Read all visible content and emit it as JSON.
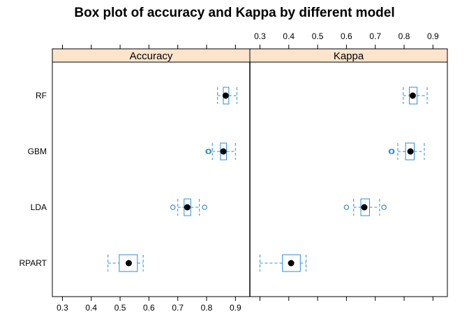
{
  "chart_data": {
    "type": "boxplot",
    "title": "Box plot of accuracy and Kappa by different model",
    "categories": [
      "RF",
      "GBM",
      "LDA",
      "RPART"
    ],
    "colors": {
      "box": "#2b8cd6",
      "median": "#000000",
      "strip": "#ffe4cc",
      "frame": "#000000"
    },
    "panels": [
      {
        "name": "Accuracy",
        "xlim": [
          0.265,
          0.95
        ],
        "ticks": [
          0.3,
          0.4,
          0.5,
          0.6,
          0.7,
          0.8,
          0.9
        ],
        "tick_labels": [
          "0.3",
          "0.4",
          "0.5",
          "0.6",
          "0.7",
          "0.8",
          "0.9"
        ],
        "tick_labels_position": "bottom",
        "boxes": [
          {
            "category": "RF",
            "min": 0.838,
            "q1": 0.858,
            "median": 0.866,
            "q3": 0.877,
            "max": 0.905,
            "outliers": []
          },
          {
            "category": "GBM",
            "min": 0.82,
            "q1": 0.848,
            "median": 0.858,
            "q3": 0.869,
            "max": 0.9,
            "outliers": [
              0.805,
              0.808
            ]
          },
          {
            "category": "LDA",
            "min": 0.7,
            "q1": 0.722,
            "median": 0.733,
            "q3": 0.745,
            "max": 0.775,
            "outliers": [
              0.683,
              0.793
            ]
          },
          {
            "category": "RPART",
            "min": 0.458,
            "q1": 0.497,
            "median": 0.53,
            "q3": 0.56,
            "max": 0.58,
            "outliers": []
          }
        ]
      },
      {
        "name": "Kappa",
        "xlim": [
          0.265,
          0.95
        ],
        "ticks": [
          0.3,
          0.4,
          0.5,
          0.6,
          0.7,
          0.8,
          0.9
        ],
        "tick_labels": [
          "0.3",
          "0.4",
          "0.5",
          "0.6",
          "0.7",
          "0.8",
          "0.9"
        ],
        "tick_labels_position": "top",
        "boxes": [
          {
            "category": "RF",
            "min": 0.797,
            "q1": 0.818,
            "median": 0.83,
            "q3": 0.845,
            "max": 0.88,
            "outliers": []
          },
          {
            "category": "GBM",
            "min": 0.778,
            "q1": 0.805,
            "median": 0.822,
            "q3": 0.835,
            "max": 0.87,
            "outliers": [
              0.755,
              0.758
            ]
          },
          {
            "category": "LDA",
            "min": 0.625,
            "q1": 0.65,
            "median": 0.662,
            "q3": 0.68,
            "max": 0.715,
            "outliers": [
              0.6,
              0.73
            ]
          },
          {
            "category": "RPART",
            "min": 0.3,
            "q1": 0.378,
            "median": 0.408,
            "q3": 0.44,
            "max": 0.46,
            "outliers": []
          }
        ]
      }
    ]
  }
}
